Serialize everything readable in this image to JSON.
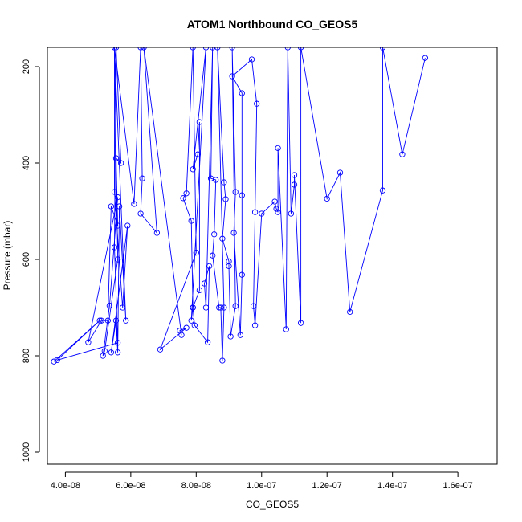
{
  "chart_data": {
    "type": "line",
    "title": "ATOM1 Northbound CO_GEOS5",
    "xlabel": "CO_GEOS5",
    "ylabel": "Pressure (mbar)",
    "xlim": [
      3.45e-08,
      1.72e-07
    ],
    "ylim": [
      1025,
      160
    ],
    "y_reversed": true,
    "x_ticks": [
      4e-08,
      6e-08,
      8e-08,
      1e-07,
      1.2e-07,
      1.4e-07,
      1.6e-07
    ],
    "x_tick_labels": [
      "4.0e-08",
      "6.0e-08",
      "8.0e-08",
      "1.0e-07",
      "1.2e-07",
      "1.4e-07",
      "1.6e-07"
    ],
    "y_ticks": [
      200,
      400,
      600,
      800,
      1000
    ],
    "y_tick_labels": [
      "200",
      "400",
      "600",
      "800",
      "1000"
    ],
    "series_color": "#0000ff",
    "series": [
      {
        "values": [
          [
            3.65e-08,
            812
          ],
          [
            5.05e-08,
            727
          ],
          [
            3.75e-08,
            809
          ],
          [
            5.6e-08,
            773
          ],
          [
            5.5e-08,
            575
          ],
          [
            5.55e-08,
            160
          ],
          [
            5.7e-08,
            400
          ],
          [
            5.55e-08,
            390
          ],
          [
            5.6e-08,
            530
          ],
          [
            5.4e-08,
            490
          ],
          [
            5.3e-08,
            727
          ],
          [
            5.1e-08,
            727
          ],
          [
            4.7e-08,
            772
          ],
          [
            5.6e-08,
            471
          ],
          [
            5.35e-08,
            696
          ],
          [
            5.15e-08,
            800
          ],
          [
            5.2e-08,
            790
          ],
          [
            5.6e-08,
            600
          ],
          [
            5.5e-08,
            160
          ],
          [
            5.5e-08,
            460
          ],
          [
            5.75e-08,
            700
          ],
          [
            5.9e-08,
            530
          ],
          [
            5.4e-08,
            793
          ],
          [
            5.55e-08,
            727
          ],
          [
            5.6e-08,
            793
          ],
          [
            5.65e-08,
            490
          ],
          [
            5.85e-08,
            727
          ],
          [
            5.5e-08,
            160
          ],
          [
            6.1e-08,
            485
          ],
          [
            6.3e-08,
            160
          ],
          [
            6.35e-08,
            432
          ],
          [
            6.3e-08,
            505
          ],
          [
            6.8e-08,
            545
          ],
          [
            6.4e-08,
            160
          ],
          [
            7.55e-08,
            757
          ],
          [
            7.5e-08,
            748
          ],
          [
            7.7e-08,
            742
          ],
          [
            6.9e-08,
            787
          ],
          [
            8e-08,
            586
          ],
          [
            7.9e-08,
            160
          ],
          [
            7.7e-08,
            463
          ],
          [
            7.6e-08,
            473
          ],
          [
            7.85e-08,
            520
          ],
          [
            7.9e-08,
            700
          ],
          [
            7.85e-08,
            727
          ],
          [
            8.3e-08,
            160
          ],
          [
            7.9e-08,
            413
          ],
          [
            8.05e-08,
            382
          ],
          [
            8.1e-08,
            315
          ],
          [
            8.1e-08,
            664
          ],
          [
            7.9e-08,
            700
          ],
          [
            7.95e-08,
            737
          ],
          [
            8.35e-08,
            772
          ],
          [
            8.4e-08,
            614
          ],
          [
            8.25e-08,
            650
          ],
          [
            8.3e-08,
            700
          ],
          [
            8.5e-08,
            160
          ],
          [
            8.45e-08,
            432
          ],
          [
            8.6e-08,
            435
          ],
          [
            8.55e-08,
            548
          ],
          [
            8.5e-08,
            592
          ],
          [
            8.7e-08,
            700
          ],
          [
            8.75e-08,
            700
          ],
          [
            8.8e-08,
            810
          ],
          [
            8.85e-08,
            700
          ],
          [
            8.65e-08,
            160
          ],
          [
            8.85e-08,
            440
          ],
          [
            8.9e-08,
            475
          ],
          [
            8.8e-08,
            557
          ],
          [
            9e-08,
            604
          ],
          [
            9e-08,
            614
          ],
          [
            9.05e-08,
            760
          ],
          [
            9.2e-08,
            697
          ],
          [
            9.1e-08,
            160
          ],
          [
            9.2e-08,
            460
          ],
          [
            9.15e-08,
            545
          ],
          [
            9.35e-08,
            757
          ],
          [
            9.4e-08,
            632
          ],
          [
            9.4e-08,
            467
          ],
          [
            9.4e-08,
            255
          ],
          [
            9.1e-08,
            220
          ],
          [
            9.7e-08,
            185
          ],
          [
            9.85e-08,
            277
          ],
          [
            9.8e-08,
            502
          ],
          [
            9.75e-08,
            697
          ],
          [
            9.8e-08,
            737
          ],
          [
            1e-07,
            505
          ],
          [
            1.04e-07,
            480
          ],
          [
            1.045e-07,
            495
          ],
          [
            1.05e-07,
            502
          ],
          [
            1.05e-07,
            369
          ],
          [
            1.075e-07,
            745
          ],
          [
            1.08e-07,
            160
          ],
          [
            1.09e-07,
            505
          ],
          [
            1.1e-07,
            445
          ],
          [
            1.1e-07,
            425
          ],
          [
            1.12e-07,
            732
          ],
          [
            1.12e-07,
            160
          ],
          [
            1.2e-07,
            474
          ],
          [
            1.24e-07,
            420
          ],
          [
            1.27e-07,
            709
          ],
          [
            1.37e-07,
            457
          ],
          [
            1.37e-07,
            160
          ],
          [
            1.43e-07,
            382
          ],
          [
            1.5e-07,
            182
          ]
        ]
      }
    ]
  }
}
